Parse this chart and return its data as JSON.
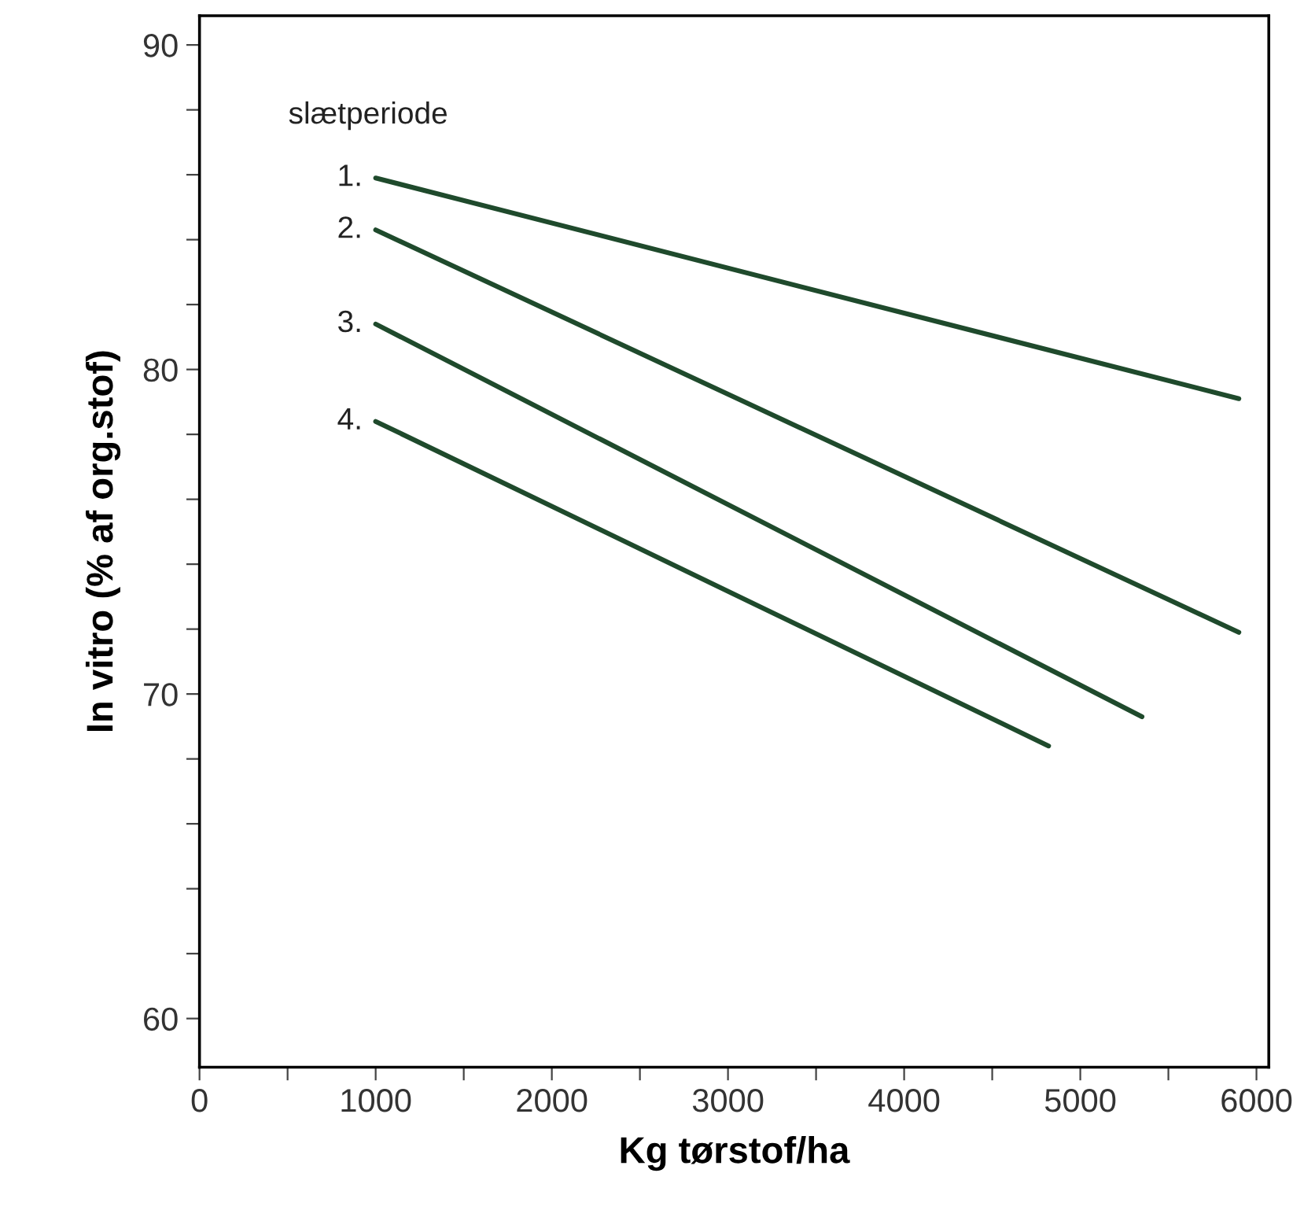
{
  "chart_data": {
    "type": "line",
    "xlabel": "Kg tørstof/ha",
    "ylabel": "In vitro (% af org.stof)",
    "legend_title": "slætperiode",
    "series": [
      {
        "name": "1.",
        "color": "#1f4a2c",
        "x": [
          1000,
          5900
        ],
        "values": [
          85.9,
          79.1
        ]
      },
      {
        "name": "2.",
        "color": "#1f4a2c",
        "x": [
          1000,
          5900
        ],
        "values": [
          84.3,
          71.9
        ]
      },
      {
        "name": "3.",
        "color": "#1f4a2c",
        "x": [
          1000,
          5350
        ],
        "values": [
          81.4,
          69.3
        ]
      },
      {
        "name": "4.",
        "color": "#1f4a2c",
        "x": [
          1000,
          4820
        ],
        "values": [
          78.4,
          68.4
        ]
      }
    ],
    "xlim": [
      0,
      6070
    ],
    "ylim": [
      58.5,
      90.9
    ],
    "xticks": [
      0,
      {
        "value": 500,
        "label": null
      },
      1000,
      {
        "value": 1500,
        "label": null
      },
      2000,
      {
        "value": 2500,
        "label": null
      },
      3000,
      {
        "value": 3500,
        "label": null
      },
      4000,
      {
        "value": 4500,
        "label": null
      },
      5000,
      {
        "value": 5500,
        "label": null
      },
      6000
    ],
    "yticks": [
      60,
      {
        "value": 62,
        "label": null
      },
      {
        "value": 64,
        "label": null
      },
      {
        "value": 66,
        "label": null
      },
      {
        "value": 68,
        "label": null
      },
      70,
      {
        "value": 72,
        "label": null
      },
      {
        "value": 74,
        "label": null
      },
      {
        "value": 76,
        "label": null
      },
      {
        "value": 78,
        "label": null
      },
      80,
      {
        "value": 82,
        "label": null
      },
      {
        "value": 84,
        "label": null
      },
      {
        "value": 86,
        "label": null
      },
      {
        "value": 88,
        "label": null
      },
      90
    ],
    "grid": false,
    "marker": "none",
    "line_style": "solid"
  }
}
